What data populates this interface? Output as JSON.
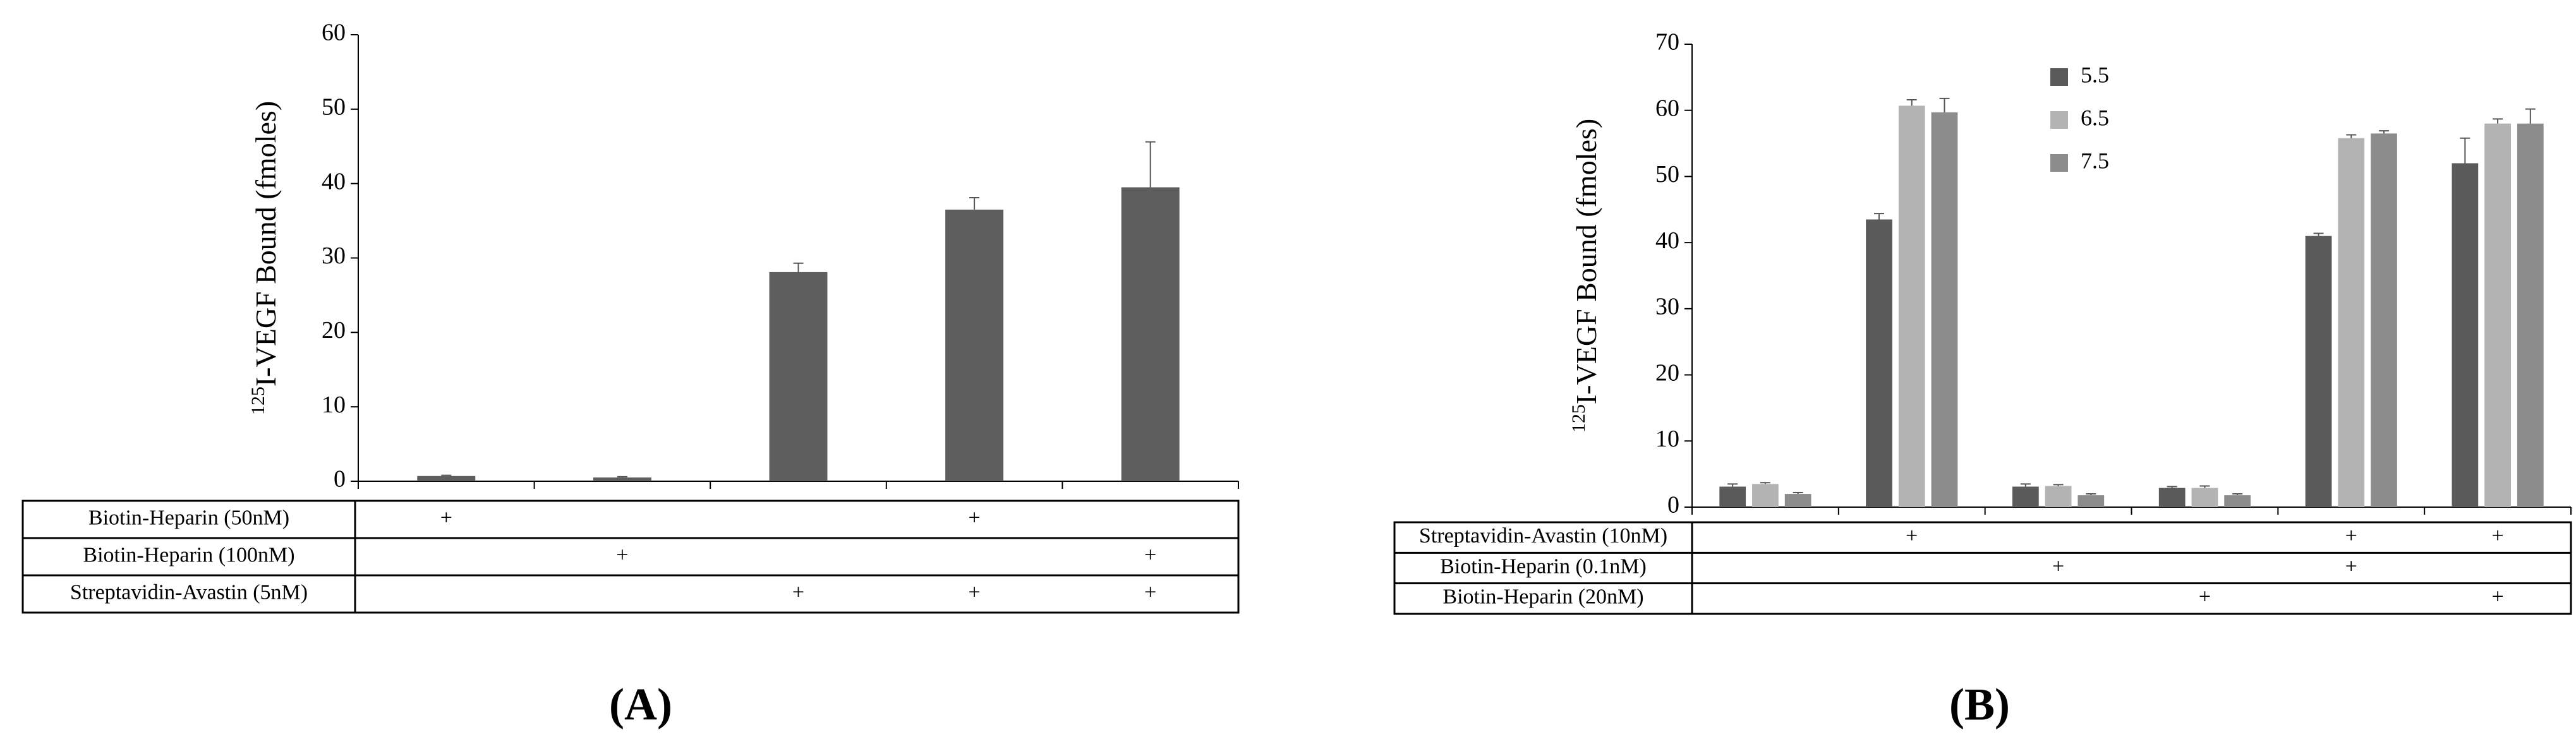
{
  "chart_data": [
    {
      "type": "bar",
      "panel_label": "(A)",
      "y_label_sup": "125",
      "y_label": "I-VEGF Bound (fmoles)",
      "categories": [
        null,
        null,
        null,
        null,
        null
      ],
      "values": [
        0.7,
        0.5,
        28.1,
        36.5,
        39.5
      ],
      "errors": [
        0.1,
        0.1,
        1.2,
        1.6,
        6.1
      ],
      "color": "#5e5e5e",
      "ylim": [
        0,
        60
      ],
      "yticks": [
        0,
        10,
        20,
        30,
        40,
        50,
        60
      ],
      "conditions": [
        {
          "label": "Biotin-Heparin (50nM)",
          "marks": [
            "+",
            null,
            null,
            "+",
            null
          ]
        },
        {
          "label": "Biotin-Heparin (100nM)",
          "marks": [
            null,
            "+",
            null,
            null,
            "+"
          ]
        },
        {
          "label": "Streptavidin-Avastin (5nM)",
          "marks": [
            null,
            null,
            "+",
            "+",
            "+"
          ]
        }
      ]
    },
    {
      "type": "bar",
      "panel_label": "(B)",
      "y_label_sup": "125",
      "y_label": "I-VEGF Bound (fmoles)",
      "categories": [
        null,
        null,
        null,
        null,
        null,
        null
      ],
      "series": [
        {
          "name": "5.5",
          "color": "#5a5a5a",
          "values": [
            3.1,
            43.5,
            3.1,
            2.9,
            41.0,
            52.0
          ],
          "errors": [
            0.4,
            0.9,
            0.4,
            0.2,
            0.4,
            3.8
          ]
        },
        {
          "name": "6.5",
          "color": "#b3b3b3",
          "values": [
            3.5,
            60.7,
            3.2,
            2.9,
            55.8,
            58.0
          ],
          "errors": [
            0.2,
            0.9,
            0.2,
            0.3,
            0.5,
            0.7
          ]
        },
        {
          "name": "7.5",
          "color": "#8c8c8c",
          "values": [
            2.0,
            59.7,
            1.8,
            1.8,
            56.5,
            58.0
          ],
          "errors": [
            0.2,
            2.1,
            0.2,
            0.2,
            0.4,
            2.2
          ]
        }
      ],
      "ylim": [
        0,
        70
      ],
      "yticks": [
        0,
        10,
        20,
        30,
        40,
        50,
        60,
        70
      ],
      "conditions": [
        {
          "label": "Streptavidin-Avastin (10nM)",
          "marks": [
            null,
            "+",
            null,
            null,
            "+",
            "+"
          ]
        },
        {
          "label": "Biotin-Heparin (0.1nM)",
          "marks": [
            null,
            null,
            "+",
            null,
            "+",
            null
          ]
        },
        {
          "label": "Biotin-Heparin (20nM)",
          "marks": [
            null,
            null,
            null,
            "+",
            null,
            "+"
          ]
        }
      ]
    }
  ]
}
